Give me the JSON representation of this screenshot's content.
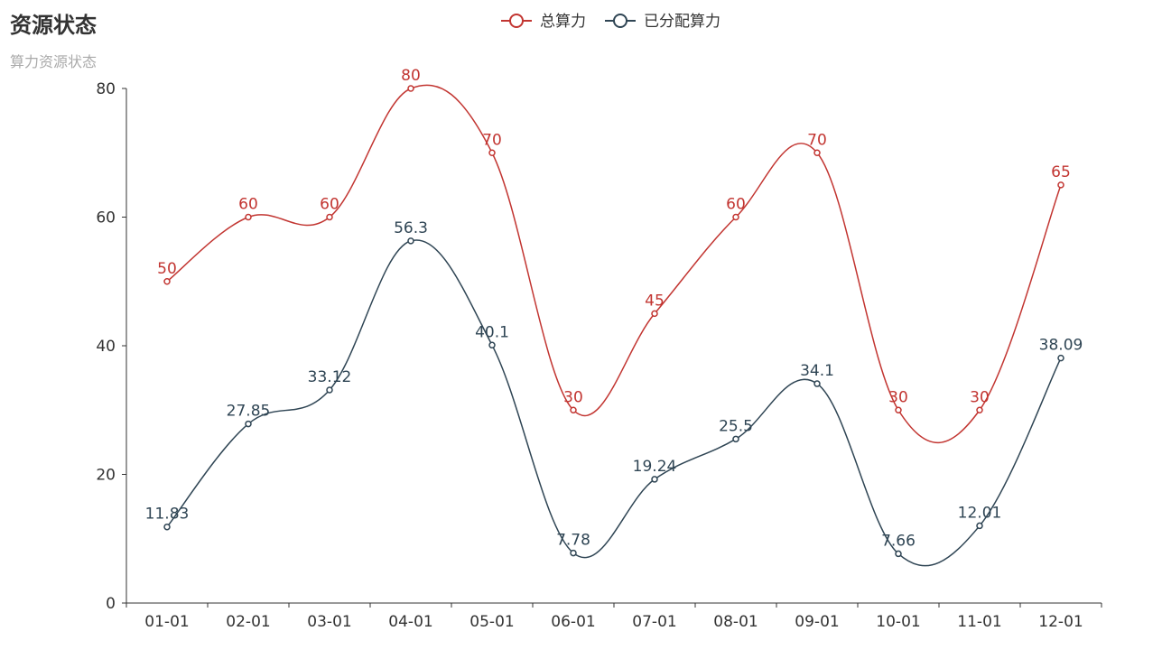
{
  "title": "资源状态",
  "subtitle": "算力资源状态",
  "chart_data": {
    "type": "line",
    "smooth": true,
    "categories": [
      "01-01",
      "02-01",
      "03-01",
      "04-01",
      "05-01",
      "06-01",
      "07-01",
      "08-01",
      "09-01",
      "10-01",
      "11-01",
      "12-01"
    ],
    "ylim": [
      0,
      80
    ],
    "yticks": [
      0,
      20,
      40,
      60,
      80
    ],
    "grid": false,
    "legend_position": "top-center",
    "series": [
      {
        "name": "总算力",
        "color": "#c23531",
        "values": [
          50,
          60,
          60,
          80,
          70,
          30,
          45,
          60,
          70,
          30,
          30,
          65
        ],
        "labels": [
          "50",
          "60",
          "60",
          "80",
          "70",
          "30",
          "45",
          "60",
          "70",
          "30",
          "30",
          "65"
        ]
      },
      {
        "name": "已分配算力",
        "color": "#2f4554",
        "values": [
          11.83,
          27.85,
          33.12,
          56.3,
          40.1,
          7.78,
          19.24,
          25.5,
          34.1,
          7.66,
          12.01,
          38.09
        ],
        "labels": [
          "11.83",
          "27.85",
          "33.12",
          "56.3",
          "40.1",
          "7.78",
          "19.24",
          "25.5",
          "34.1",
          "7.66",
          "12.01",
          "38.09"
        ]
      }
    ]
  }
}
